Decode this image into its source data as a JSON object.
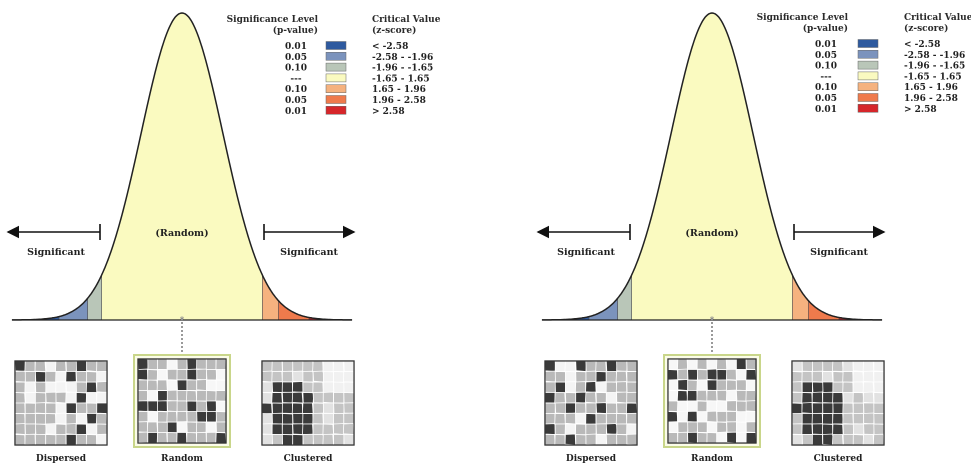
{
  "panels": [
    {
      "id": "left",
      "legend": {
        "title_left_1": "Significance Level",
        "title_left_2": "(p-value)",
        "title_right_1": "Critical Value",
        "title_right_2": "(z-score)",
        "rows": [
          {
            "p": "0.01",
            "z": "< -2.58",
            "color": "#2e5a9f"
          },
          {
            "p": "0.05",
            "z": "-2.58 - -1.96",
            "color": "#7b93bd"
          },
          {
            "p": "0.10",
            "z": "-1.96 - -1.65",
            "color": "#b9c6b8"
          },
          {
            "p": "---",
            "z": "-1.65 - 1.65",
            "color": "#fafac0"
          },
          {
            "p": "0.10",
            "z": "1.65 - 1.96",
            "color": "#f5b27f"
          },
          {
            "p": "0.05",
            "z": "1.96 - 2.58",
            "color": "#ef7a4c"
          },
          {
            "p": "0.01",
            "z": "> 2.58",
            "color": "#d6262a"
          }
        ]
      },
      "labels": {
        "left_significant": "Significant",
        "random": "(Random)",
        "right_significant": "Significant"
      },
      "patterns": [
        {
          "label": "Dispersed"
        },
        {
          "label": "Random"
        },
        {
          "label": "Clustered"
        }
      ]
    },
    {
      "id": "right",
      "legend": {
        "title_left_1": "Significance Level",
        "title_left_2": "(p-value)",
        "title_right_1": "Critical Value",
        "title_right_2": "(z-score)",
        "rows": [
          {
            "p": "0.01",
            "z": "< -2.58",
            "color": "#2e5a9f"
          },
          {
            "p": "0.05",
            "z": "-2.58 - -1.96",
            "color": "#7b93bd"
          },
          {
            "p": "0.10",
            "z": "-1.96 - -1.65",
            "color": "#b9c6b8"
          },
          {
            "p": "---",
            "z": "-1.65 - 1.65",
            "color": "#fafac0"
          },
          {
            "p": "0.10",
            "z": "1.65 - 1.96",
            "color": "#f5b27f"
          },
          {
            "p": "0.05",
            "z": "1.96 - 2.58",
            "color": "#ef7a4c"
          },
          {
            "p": "0.01",
            "z": "> 2.58",
            "color": "#d6262a"
          }
        ]
      },
      "labels": {
        "left_significant": "Significant",
        "random": "(Random)",
        "right_significant": "Significant"
      },
      "patterns": [
        {
          "label": "Dispersed"
        },
        {
          "label": "Random"
        },
        {
          "label": "Clustered"
        }
      ]
    }
  ]
}
